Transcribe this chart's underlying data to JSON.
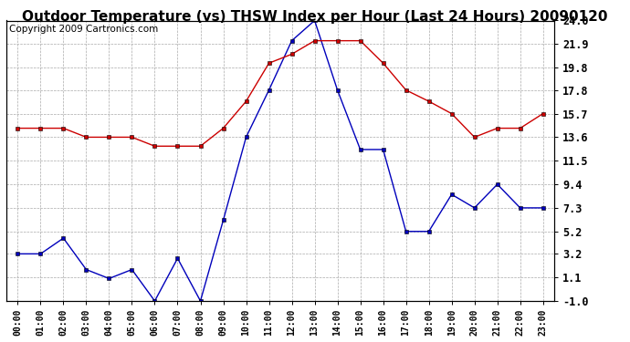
{
  "title": "Outdoor Temperature (vs) THSW Index per Hour (Last 24 Hours) 20090120",
  "copyright": "Copyright 2009 Cartronics.com",
  "hours": [
    "00:00",
    "01:00",
    "02:00",
    "03:00",
    "04:00",
    "05:00",
    "06:00",
    "07:00",
    "08:00",
    "09:00",
    "10:00",
    "11:00",
    "12:00",
    "13:00",
    "14:00",
    "15:00",
    "16:00",
    "17:00",
    "18:00",
    "19:00",
    "20:00",
    "21:00",
    "22:00",
    "23:00"
  ],
  "blue_data": [
    3.2,
    3.2,
    4.6,
    1.8,
    1.0,
    1.8,
    -1.0,
    2.8,
    -1.0,
    6.2,
    13.6,
    17.8,
    22.2,
    24.0,
    17.8,
    12.5,
    12.5,
    5.2,
    5.2,
    8.5,
    7.3,
    9.4,
    7.3,
    7.3
  ],
  "red_data": [
    14.4,
    14.4,
    14.4,
    13.6,
    13.6,
    13.6,
    12.8,
    12.8,
    12.8,
    14.4,
    16.8,
    20.2,
    21.0,
    22.2,
    22.2,
    22.2,
    20.2,
    17.8,
    16.8,
    15.7,
    13.6,
    14.4,
    14.4,
    15.7
  ],
  "ylim": [
    -1.0,
    24.0
  ],
  "yticks": [
    -1.0,
    1.1,
    3.2,
    5.2,
    7.3,
    9.4,
    11.5,
    13.6,
    15.7,
    17.8,
    19.8,
    21.9,
    24.0
  ],
  "blue_color": "#0000bb",
  "red_color": "#cc0000",
  "bg_color": "#ffffff",
  "grid_color": "#aaaaaa",
  "title_fontsize": 11,
  "copyright_fontsize": 7.5
}
